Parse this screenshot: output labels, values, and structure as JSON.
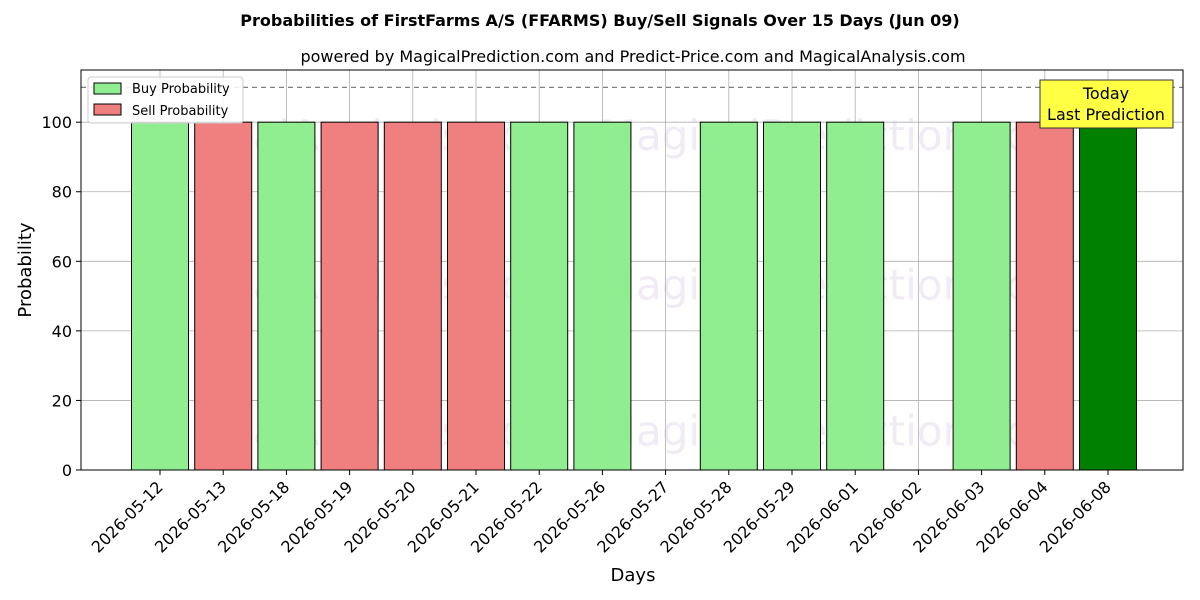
{
  "chart_data": {
    "type": "bar",
    "title": "Probabilities of FirstFarms A/S (FFARMS) Buy/Sell Signals Over 15 Days (Jun 09)",
    "subtitle": "powered by MagicalPrediction.com and Predict-Price.com and MagicalAnalysis.com",
    "xlabel": "Days",
    "ylabel": "Probability",
    "ylim": [
      0,
      115
    ],
    "yticks": [
      0,
      20,
      40,
      60,
      80,
      100
    ],
    "grid": true,
    "legend_placement": "top-left",
    "reference_line": 110,
    "categories": [
      "2026-05-12",
      "2026-05-13",
      "2026-05-18",
      "2026-05-19",
      "2026-05-20",
      "2026-05-21",
      "2026-05-22",
      "2026-05-26",
      "2026-05-27",
      "2026-05-28",
      "2026-05-29",
      "2026-06-01",
      "2026-06-02",
      "2026-06-03",
      "2026-06-04",
      "2026-06-08"
    ],
    "series": [
      {
        "name": "Buy Probability",
        "color": "#90ee90",
        "values": [
          100,
          0,
          100,
          0,
          0,
          0,
          100,
          100,
          0,
          100,
          100,
          100,
          0,
          100,
          0,
          100
        ]
      },
      {
        "name": "Sell Probability",
        "color": "#f08080",
        "values": [
          0,
          100,
          0,
          100,
          100,
          100,
          0,
          0,
          0,
          0,
          0,
          0,
          0,
          0,
          100,
          0
        ]
      }
    ],
    "highlight": {
      "category": "2026-06-08",
      "color": "#008000"
    },
    "annotation": {
      "lines": [
        "Today",
        "Last Prediction"
      ],
      "background": "#ffff44"
    },
    "watermarks": [
      "MagicalAnalysis.com",
      "MagicalPrediction.com"
    ]
  }
}
